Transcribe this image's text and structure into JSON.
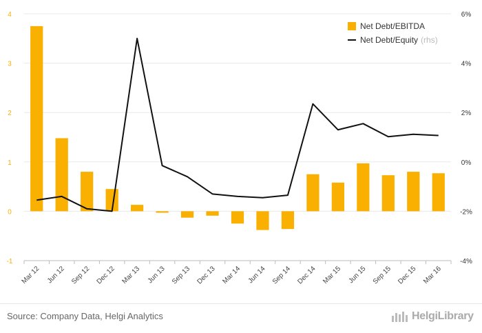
{
  "chart_data": {
    "type": "bar",
    "categories": [
      "Mar 12",
      "Jun 12",
      "Sep 12",
      "Dec 12",
      "Mar 13",
      "Jun 13",
      "Sep 13",
      "Dec 13",
      "Mar 14",
      "Jun 14",
      "Sep 14",
      "Dec 14",
      "Mar 15",
      "Jun 15",
      "Sep 15",
      "Dec 15",
      "Mar 16"
    ],
    "series": [
      {
        "name": "Net Debt/EBITDA",
        "type": "bar",
        "axis": "left",
        "color": "#F9B000",
        "values": [
          3.75,
          1.48,
          0.8,
          0.45,
          0.13,
          -0.03,
          -0.13,
          -0.09,
          -0.25,
          -0.38,
          -0.36,
          0.75,
          0.58,
          0.97,
          0.73,
          0.8,
          0.77
        ]
      },
      {
        "name": "Net Debt/Equity",
        "name_suffix": "(rhs)",
        "type": "line",
        "axis": "right",
        "color": "#111111",
        "values": [
          -1.55,
          -1.4,
          -1.9,
          -2.0,
          5.0,
          -0.15,
          -0.6,
          -1.3,
          -1.4,
          -1.45,
          -1.35,
          2.35,
          1.3,
          1.55,
          1.02,
          1.12,
          1.07
        ]
      }
    ],
    "ylim_left": [
      -1,
      4
    ],
    "yticks_left": [
      -1,
      0,
      1,
      2,
      3,
      4
    ],
    "ylim_right": [
      -4,
      6
    ],
    "yticks_right": [
      "-4%",
      "-2%",
      "0%",
      "2%",
      "4%",
      "6%"
    ],
    "yticks_right_values": [
      -4,
      -2,
      0,
      2,
      4,
      6
    ],
    "grid": true,
    "legend_position": "top-right"
  },
  "footer": {
    "source": "Source: Company Data, Helgi Analytics",
    "logo_text": "HelgiLibrary"
  },
  "colors": {
    "bar": "#F9B000",
    "line": "#111111",
    "grid": "#e8e8e8",
    "left_axis_text": "#F9B000"
  }
}
